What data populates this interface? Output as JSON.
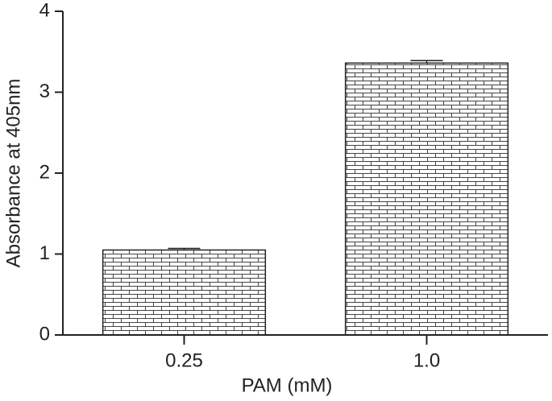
{
  "chart_data": {
    "type": "bar",
    "x_label": "PAM (mM)",
    "y_label": "Absorbance at 405nm",
    "categories": [
      "0.25",
      "1.0"
    ],
    "values": [
      1.05,
      3.36
    ],
    "errors": [
      0.02,
      0.03
    ],
    "ylim": [
      0,
      4
    ],
    "yticks": [
      0,
      1,
      2,
      3,
      4
    ]
  }
}
